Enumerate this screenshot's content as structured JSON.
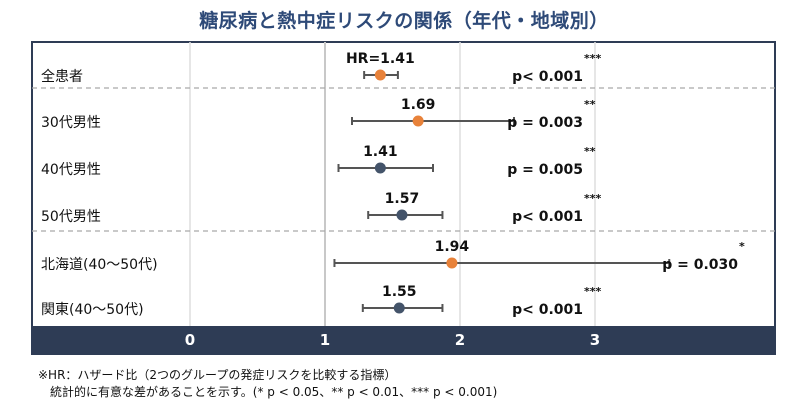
{
  "title": "糖尿病と熱中症リスクの関係（年代・地域別）",
  "footnote": {
    "line1": "※HR：ハザード比（2つのグループの発症リスクを比較する指標）",
    "line2": "統計的に有意な差があることを示す。(* p < 0.05、** p < 0.01、*** p < 0.001)"
  },
  "colors": {
    "accent": "#e8823a",
    "point": "#44546a",
    "whisker": "#555555",
    "axis_band": "#2e3c55",
    "frame": "#2e3c55",
    "title": "#2e4a78"
  },
  "chart_data": {
    "type": "forest",
    "xlim": [
      0,
      3.7
    ],
    "xticks": [
      0,
      1,
      2,
      3
    ],
    "reference_line": 1,
    "rows": [
      {
        "label": "全患者",
        "hr": 1.41,
        "lower": 1.29,
        "upper": 1.54,
        "hr_label": "HR=1.41",
        "p_label": "p< 0.001",
        "stars": "***",
        "highlight": true
      },
      {
        "label": "30代男性",
        "hr": 1.69,
        "lower": 1.2,
        "upper": 2.4,
        "hr_label": "1.69",
        "p_label": "p = 0.003",
        "stars": "**",
        "highlight": true
      },
      {
        "label": "40代男性",
        "hr": 1.41,
        "lower": 1.1,
        "upper": 1.8,
        "hr_label": "1.41",
        "p_label": "p = 0.005",
        "stars": "**",
        "highlight": false
      },
      {
        "label": "50代男性",
        "hr": 1.57,
        "lower": 1.32,
        "upper": 1.87,
        "hr_label": "1.57",
        "p_label": "p< 0.001",
        "stars": "***",
        "highlight": false
      },
      {
        "label": "北海道(40～50代)",
        "hr": 1.94,
        "lower": 1.07,
        "upper": 3.55,
        "hr_label": "1.94",
        "p_label": "p = 0.030",
        "stars": "*",
        "highlight": true
      },
      {
        "label": "関東(40～50代)",
        "hr": 1.55,
        "lower": 1.28,
        "upper": 1.87,
        "hr_label": "1.55",
        "p_label": "p< 0.001",
        "stars": "***",
        "highlight": false
      }
    ],
    "groups": [
      [
        0
      ],
      [
        1,
        2,
        3
      ],
      [
        4,
        5
      ]
    ]
  }
}
